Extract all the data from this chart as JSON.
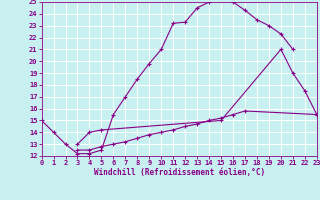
{
  "xlabel": "Windchill (Refroidissement éolien,°C)",
  "bg_color": "#c8f0f0",
  "line_color": "#880088",
  "grid_color": "#aadddd",
  "xmin": 0,
  "xmax": 23,
  "ymin": 12,
  "ymax": 25,
  "curves": [
    {
      "x": [
        0,
        1,
        2,
        3,
        4,
        5,
        6,
        7,
        8,
        9,
        10,
        11,
        12,
        13,
        14,
        15,
        16,
        17,
        18,
        19,
        20,
        21
      ],
      "y": [
        15.0,
        14.0,
        13.0,
        12.2,
        12.2,
        12.5,
        15.5,
        17.0,
        18.5,
        19.8,
        21.0,
        23.2,
        23.3,
        24.5,
        25.0,
        25.2,
        25.0,
        24.3,
        23.5,
        23.0,
        22.3,
        21.0
      ]
    },
    {
      "x": [
        3,
        4,
        5,
        15,
        20,
        21,
        22,
        23
      ],
      "y": [
        13.0,
        14.0,
        14.2,
        15.0,
        21.0,
        19.0,
        17.5,
        15.5
      ]
    },
    {
      "x": [
        3,
        4,
        5,
        6,
        7,
        8,
        9,
        10,
        11,
        12,
        13,
        14,
        15,
        16,
        17,
        23
      ],
      "y": [
        12.5,
        12.5,
        12.8,
        13.0,
        13.2,
        13.5,
        13.8,
        14.0,
        14.2,
        14.5,
        14.7,
        15.0,
        15.2,
        15.5,
        15.8,
        15.5
      ]
    }
  ],
  "xticks": [
    0,
    1,
    2,
    3,
    4,
    5,
    6,
    7,
    8,
    9,
    10,
    11,
    12,
    13,
    14,
    15,
    16,
    17,
    18,
    19,
    20,
    21,
    22,
    23
  ],
  "yticks": [
    12,
    13,
    14,
    15,
    16,
    17,
    18,
    19,
    20,
    21,
    22,
    23,
    24,
    25
  ],
  "tick_fontsize": 5.0,
  "xlabel_fontsize": 5.5
}
